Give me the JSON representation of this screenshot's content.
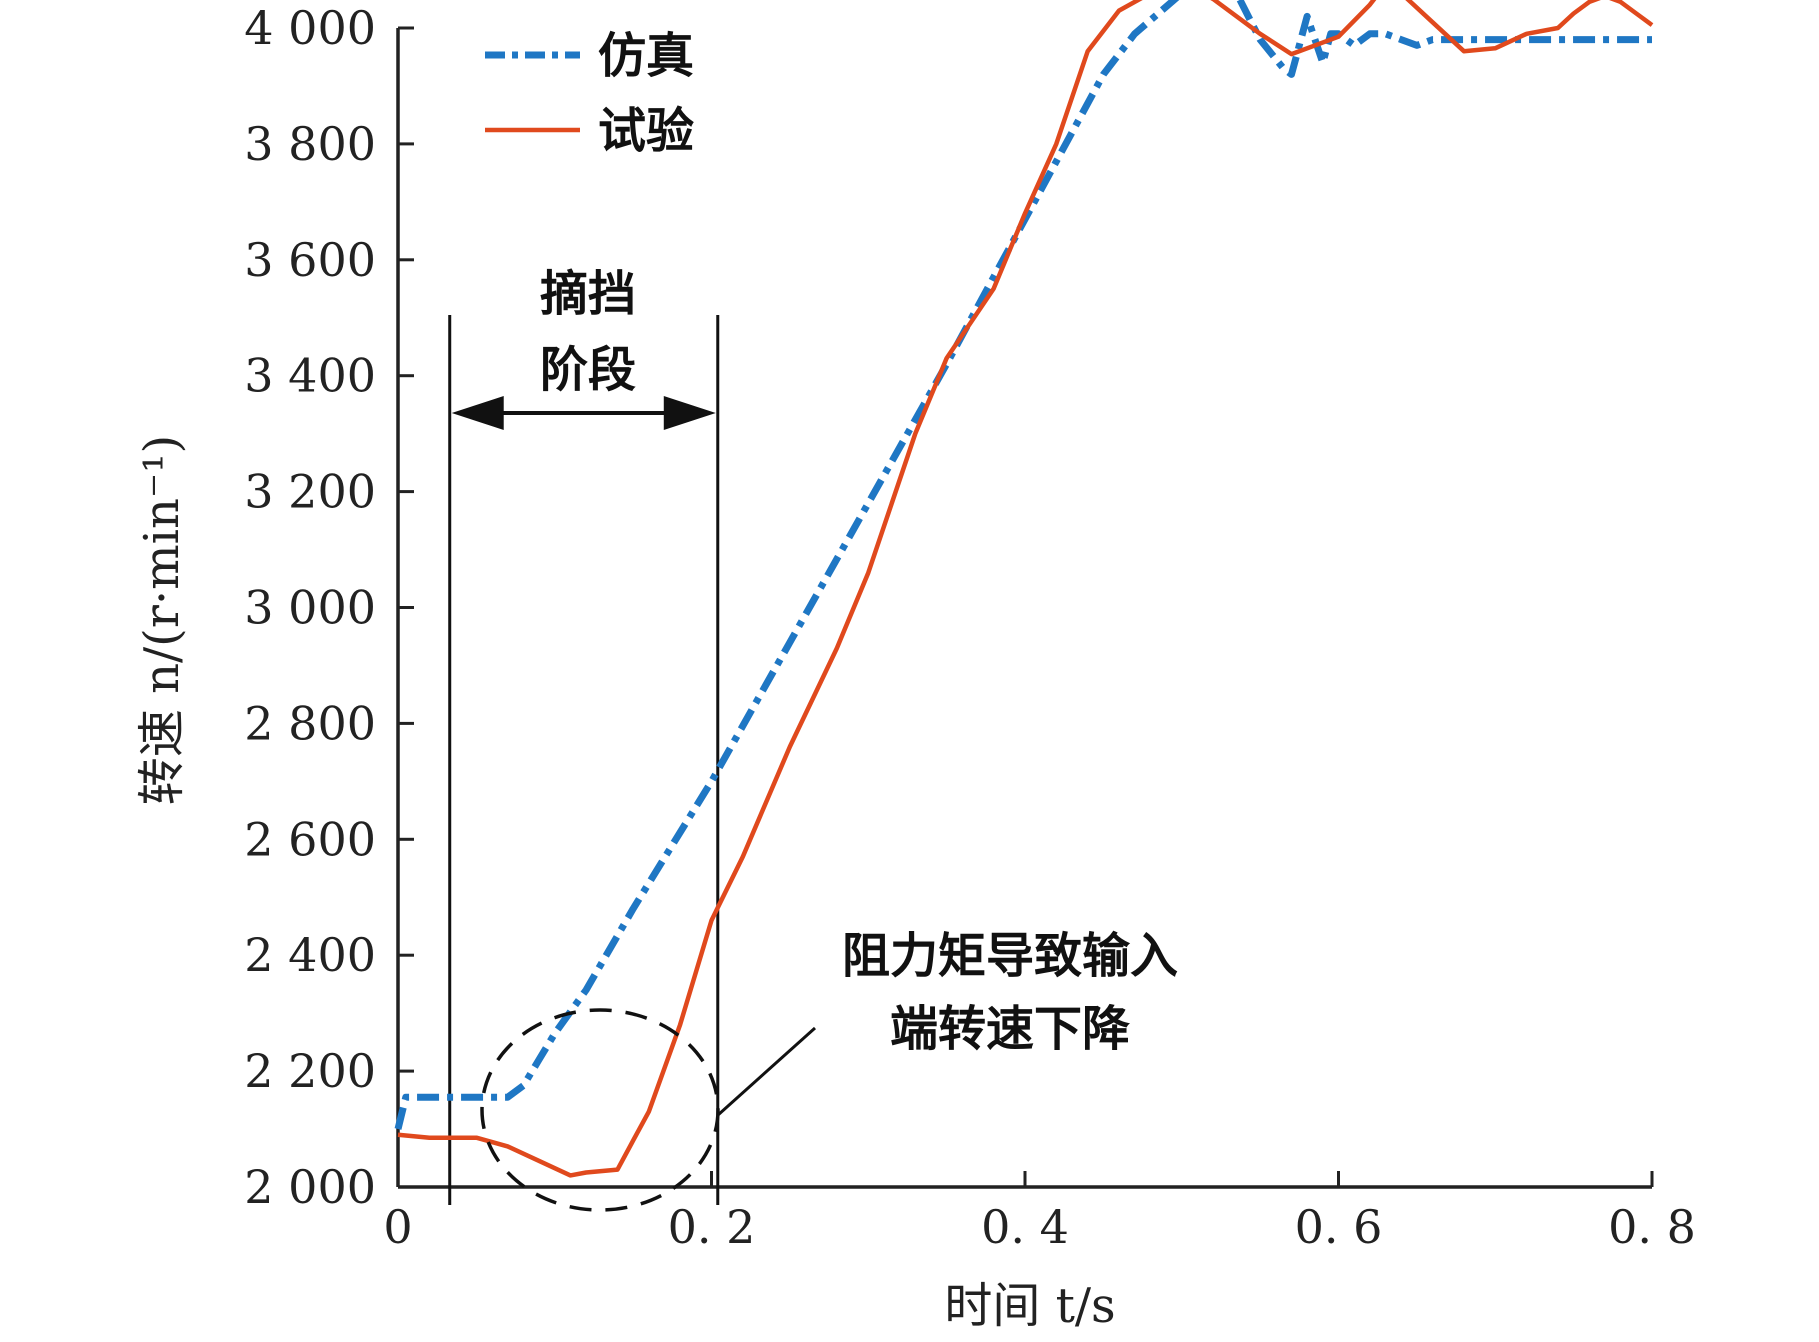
{
  "chart_data": {
    "type": "line",
    "xlabel": "时间 t/s",
    "ylabel": "转速 n/(r·min⁻¹)",
    "xlim": [
      0,
      0.8
    ],
    "ylim": [
      2000,
      4000
    ],
    "x_ticks": [
      0,
      0.2,
      0.4,
      0.6,
      0.8
    ],
    "x_tick_labels": [
      "0",
      "0. 2",
      "0. 4",
      "0. 6",
      "0. 8"
    ],
    "y_ticks": [
      2000,
      2200,
      2400,
      2600,
      2800,
      3000,
      3200,
      3400,
      3600,
      3800,
      4000
    ],
    "y_tick_labels": [
      "2 000",
      "2 200",
      "2 400",
      "2 600",
      "2 800",
      "3 000",
      "3 200",
      "3 400",
      "3 600",
      "3 800",
      "4 000"
    ],
    "grid": false,
    "legend_position": "top-left",
    "series": [
      {
        "name": "仿真",
        "color": "#1f77c4",
        "style": "dashdot",
        "x": [
          0,
          0.005,
          0.02,
          0.05,
          0.07,
          0.08,
          0.09,
          0.1,
          0.12,
          0.15,
          0.2,
          0.25,
          0.3,
          0.35,
          0.4,
          0.45,
          0.47,
          0.5,
          0.52,
          0.535,
          0.55,
          0.565,
          0.57,
          0.575,
          0.58,
          0.585,
          0.59,
          0.595,
          0.6,
          0.61,
          0.62,
          0.63,
          0.64,
          0.65,
          0.66,
          0.68,
          0.7,
          0.75,
          0.8
        ],
        "y": [
          2100,
          2155,
          2155,
          2155,
          2155,
          2175,
          2220,
          2265,
          2340,
          2480,
          2700,
          2940,
          3180,
          3420,
          3670,
          3920,
          3990,
          4060,
          4060,
          4060,
          3980,
          3930,
          3920,
          3970,
          4020,
          3980,
          3940,
          3990,
          3990,
          3970,
          3990,
          3990,
          3980,
          3970,
          3980,
          3980,
          3980,
          3980,
          3980
        ]
      },
      {
        "name": "试验",
        "color": "#e0491d",
        "style": "solid",
        "x": [
          0,
          0.02,
          0.05,
          0.07,
          0.09,
          0.11,
          0.12,
          0.14,
          0.15,
          0.16,
          0.18,
          0.2,
          0.22,
          0.25,
          0.28,
          0.3,
          0.33,
          0.35,
          0.38,
          0.4,
          0.42,
          0.44,
          0.46,
          0.48,
          0.5,
          0.51,
          0.52,
          0.55,
          0.57,
          0.6,
          0.62,
          0.63,
          0.64,
          0.66,
          0.68,
          0.7,
          0.72,
          0.74,
          0.75,
          0.76,
          0.77,
          0.78,
          0.79,
          0.8
        ],
        "y": [
          2090,
          2085,
          2085,
          2070,
          2045,
          2020,
          2025,
          2030,
          2080,
          2130,
          2280,
          2460,
          2570,
          2760,
          2930,
          3060,
          3300,
          3430,
          3550,
          3680,
          3800,
          3960,
          4030,
          4060,
          4070,
          4065,
          4050,
          3990,
          3955,
          3985,
          4040,
          4075,
          4060,
          4010,
          3960,
          3965,
          3990,
          4000,
          4025,
          4045,
          4055,
          4045,
          4025,
          4005
        ]
      }
    ],
    "annotations": {
      "phase_label_line1": "摘挡",
      "phase_label_line2": "阶段",
      "phase_start_x": 0.033,
      "phase_end_x": 0.204,
      "drop_note_line1": "阻力矩导致输入",
      "drop_note_line2": "端转速下降"
    }
  }
}
